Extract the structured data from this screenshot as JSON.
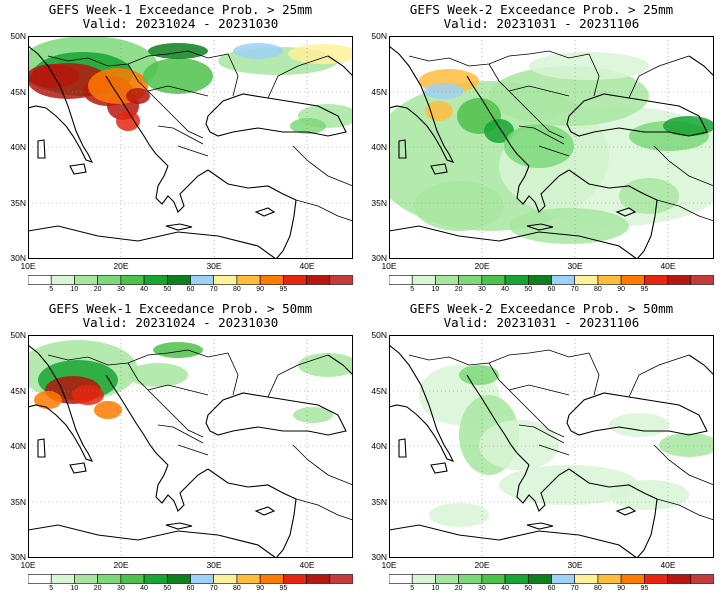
{
  "panels": [
    {
      "id": "w1-25",
      "title": "GEFS Week-1 Exceedance Prob. > 25mm",
      "valid": "Valid: 20231024 - 20231030"
    },
    {
      "id": "w2-25",
      "title": "GEFS Week-2 Exceedance Prob. > 25mm",
      "valid": "Valid: 20231031 - 20231106"
    },
    {
      "id": "w1-50",
      "title": "GEFS Week-1 Exceedance Prob. > 50mm",
      "valid": "Valid: 20231024 - 20231030"
    },
    {
      "id": "w2-50",
      "title": "GEFS Week-2 Exceedance Prob. > 50mm",
      "valid": "Valid: 20231031 - 20231106"
    }
  ],
  "lat_labels": [
    "50N",
    "45N",
    "40N",
    "35N",
    "30N"
  ],
  "lon_labels": [
    "10E",
    "20E",
    "30E",
    "40E"
  ],
  "colorbar": {
    "levels": [
      "5",
      "10",
      "20",
      "30",
      "40",
      "50",
      "60",
      "70",
      "80",
      "90",
      "95"
    ],
    "colors": [
      "#ffffff",
      "#d8f5d5",
      "#a8e6a0",
      "#7dd87a",
      "#4dc24a",
      "#18a534",
      "#0d7f1e",
      "#9fd0f5",
      "#fff09a",
      "#ffbd3d",
      "#ff7a00",
      "#e8260f",
      "#b5160e",
      "#c43c3c"
    ]
  }
}
